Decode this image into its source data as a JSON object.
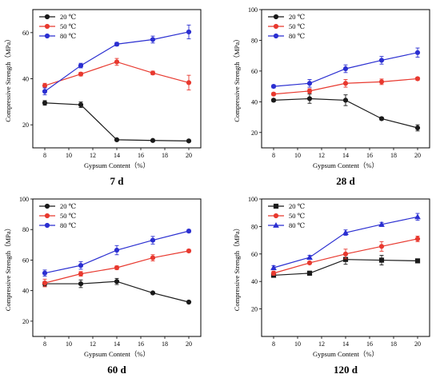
{
  "chart_data": [
    {
      "type": "line",
      "caption": "7 d",
      "xlabel": "Gypsum Content（%）",
      "ylabel": "Compressive Strength（MPa）",
      "x": [
        8,
        11,
        14,
        17,
        20
      ],
      "xlim": [
        7,
        21
      ],
      "ylim": [
        10,
        70
      ],
      "xticks": [
        8,
        10,
        12,
        14,
        16,
        18,
        20
      ],
      "yticks": [
        20,
        40,
        60
      ],
      "legend_position": "top-left",
      "series": [
        {
          "name": "20 ℃",
          "color": "#1a1a1a",
          "marker": "circle",
          "values": [
            29.5,
            28.7,
            13.5,
            13.2,
            13.0
          ],
          "errors": [
            1.0,
            1.2,
            0.5,
            0.5,
            0.5
          ]
        },
        {
          "name": "50 ℃",
          "color": "#e8392f",
          "marker": "circle",
          "values": [
            37.0,
            42.0,
            47.3,
            42.5,
            38.3
          ],
          "errors": [
            1.0,
            0.8,
            1.5,
            0.8,
            3.2
          ]
        },
        {
          "name": "80 ℃",
          "color": "#2b2fd1",
          "marker": "circle",
          "values": [
            34.5,
            45.7,
            55.0,
            57.0,
            60.3
          ],
          "errors": [
            1.5,
            1.0,
            0.8,
            1.5,
            3.0
          ]
        }
      ]
    },
    {
      "type": "line",
      "caption": "28 d",
      "xlabel": "Gypsum Content（%）",
      "ylabel": "Compressive Strength（MPa）",
      "x": [
        8,
        11,
        14,
        17,
        20
      ],
      "xlim": [
        7,
        21
      ],
      "ylim": [
        10,
        100
      ],
      "xticks": [
        8,
        10,
        12,
        14,
        16,
        18,
        20
      ],
      "yticks": [
        20,
        40,
        60,
        80,
        100
      ],
      "legend_position": "top-left",
      "series": [
        {
          "name": "20 ℃",
          "color": "#1a1a1a",
          "marker": "circle",
          "values": [
            41.0,
            42.0,
            41.0,
            29.0,
            23.0
          ],
          "errors": [
            1.0,
            3.0,
            3.5,
            1.0,
            2.0
          ]
        },
        {
          "name": "50 ℃",
          "color": "#e8392f",
          "marker": "circle",
          "values": [
            45.0,
            47.0,
            52.0,
            53.0,
            55.0
          ],
          "errors": [
            1.0,
            1.5,
            2.5,
            1.8,
            1.0
          ]
        },
        {
          "name": "80 ℃",
          "color": "#2b2fd1",
          "marker": "circle",
          "values": [
            50.0,
            52.0,
            61.5,
            67.0,
            72.0
          ],
          "errors": [
            1.0,
            2.5,
            2.5,
            2.5,
            3.0
          ]
        }
      ]
    },
    {
      "type": "line",
      "caption": "60 d",
      "xlabel": "Gypsum Content（%）",
      "ylabel": "Compressive Strength（MPa）",
      "x": [
        8,
        11,
        14,
        17,
        20
      ],
      "xlim": [
        7,
        21
      ],
      "ylim": [
        10,
        100
      ],
      "xticks": [
        8,
        10,
        12,
        14,
        16,
        18,
        20
      ],
      "yticks": [
        20,
        40,
        60,
        80,
        100
      ],
      "legend_position": "top-left",
      "series": [
        {
          "name": "20 ℃",
          "color": "#1a1a1a",
          "marker": "circle",
          "values": [
            44.5,
            44.5,
            46.0,
            38.5,
            32.5
          ],
          "errors": [
            1.5,
            2.5,
            2.0,
            0.8,
            0.8
          ]
        },
        {
          "name": "50 ℃",
          "color": "#e8392f",
          "marker": "circle",
          "values": [
            45.0,
            51.0,
            55.0,
            61.5,
            66.0
          ],
          "errors": [
            2.5,
            1.5,
            1.2,
            2.0,
            1.0
          ]
        },
        {
          "name": "80 ℃",
          "color": "#2b2fd1",
          "marker": "circle",
          "values": [
            51.5,
            56.5,
            66.5,
            73.0,
            79.0
          ],
          "errors": [
            2.0,
            2.5,
            3.0,
            2.5,
            1.0
          ]
        }
      ]
    },
    {
      "type": "line",
      "caption": "120 d",
      "xlabel": "Gypsum Content（%）",
      "ylabel": "Compressive Strength（MPa）",
      "x": [
        8,
        11,
        14,
        17,
        20
      ],
      "xlim": [
        7,
        21
      ],
      "ylim": [
        0,
        100
      ],
      "xticks": [
        8,
        10,
        12,
        14,
        16,
        18,
        20
      ],
      "yticks": [
        20,
        40,
        60,
        80,
        100
      ],
      "legend_position": "top-left",
      "series": [
        {
          "name": "20 ℃",
          "color": "#1a1a1a",
          "marker": "square",
          "values": [
            44.5,
            46.0,
            56.0,
            55.5,
            55.0
          ],
          "errors": [
            1.5,
            1.5,
            3.5,
            3.5,
            1.0
          ]
        },
        {
          "name": "50 ℃",
          "color": "#e8392f",
          "marker": "circle",
          "values": [
            46.0,
            53.5,
            60.0,
            65.5,
            71.0
          ],
          "errors": [
            1.5,
            1.0,
            3.5,
            3.5,
            2.0
          ]
        },
        {
          "name": "80 ℃",
          "color": "#2b2fd1",
          "marker": "triangle",
          "values": [
            50.0,
            57.5,
            75.5,
            81.5,
            87.0
          ],
          "errors": [
            1.5,
            1.5,
            2.0,
            1.5,
            2.5
          ]
        }
      ]
    }
  ]
}
